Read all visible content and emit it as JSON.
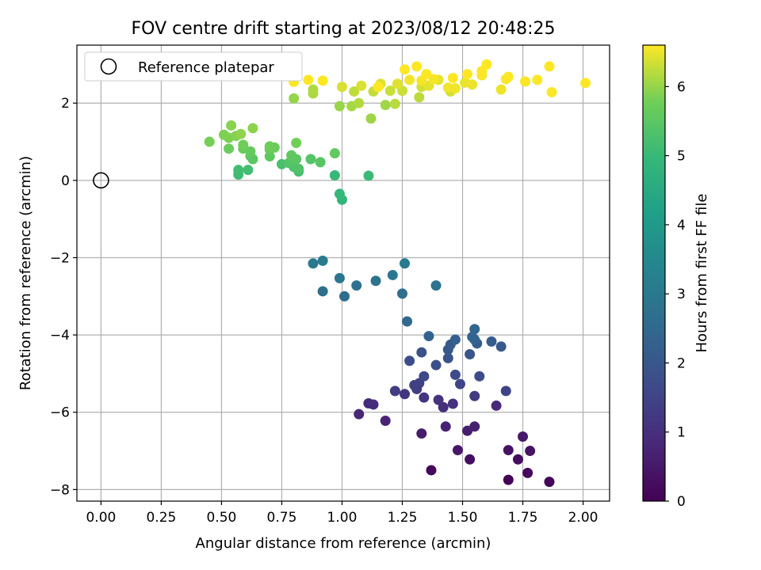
{
  "chart_data": {
    "type": "scatter",
    "title": "FOV centre drift starting at 2023/08/12 20:48:25",
    "xlabel": "Angular distance from reference (arcmin)",
    "ylabel": "Rotation from reference (arcmin)",
    "xlim": [
      -0.1,
      2.11
    ],
    "ylim": [
      -8.3,
      3.5
    ],
    "xticks": [
      "0.00",
      "0.25",
      "0.50",
      "0.75",
      "1.00",
      "1.25",
      "1.50",
      "1.75",
      "2.00"
    ],
    "yticks": [
      "−8",
      "−6",
      "−4",
      "−2",
      "0",
      "2"
    ],
    "grid": true,
    "legend": {
      "position": "top-left",
      "entries": [
        "Reference platepar"
      ]
    },
    "reference_point": {
      "x": 0.0,
      "y": 0.0
    },
    "colorbar": {
      "label": "Hours from first FF file",
      "range": [
        0,
        6.6
      ],
      "ticks": [
        "0",
        "1",
        "2",
        "3",
        "4",
        "5",
        "6"
      ],
      "colormap": "viridis"
    },
    "points": [
      [
        1.69,
        -7.75,
        0.05
      ],
      [
        1.86,
        -7.8,
        0.1
      ],
      [
        1.37,
        -7.5,
        0.15
      ],
      [
        1.77,
        -7.57,
        0.2
      ],
      [
        1.73,
        -7.22,
        0.25
      ],
      [
        1.53,
        -7.22,
        0.3
      ],
      [
        1.69,
        -6.98,
        0.35
      ],
      [
        1.78,
        -7.0,
        0.4
      ],
      [
        1.48,
        -6.98,
        0.45
      ],
      [
        1.75,
        -6.63,
        0.5
      ],
      [
        1.33,
        -6.55,
        0.55
      ],
      [
        1.52,
        -6.48,
        0.6
      ],
      [
        1.55,
        -6.37,
        0.65
      ],
      [
        1.43,
        -6.37,
        0.7
      ],
      [
        1.18,
        -6.22,
        0.75
      ],
      [
        1.07,
        -6.05,
        0.8
      ],
      [
        1.64,
        -5.83,
        0.85
      ],
      [
        1.11,
        -5.77,
        0.9
      ],
      [
        1.13,
        -5.8,
        0.95
      ],
      [
        1.42,
        -5.87,
        1.0
      ],
      [
        1.46,
        -5.78,
        1.05
      ],
      [
        1.4,
        -5.68,
        1.1
      ],
      [
        1.34,
        -5.62,
        1.15
      ],
      [
        1.26,
        -5.53,
        1.2
      ],
      [
        1.55,
        -5.58,
        1.25
      ],
      [
        1.22,
        -5.45,
        1.3
      ],
      [
        1.31,
        -5.4,
        1.35
      ],
      [
        1.3,
        -5.3,
        1.4
      ],
      [
        1.32,
        -5.25,
        1.45
      ],
      [
        1.68,
        -5.45,
        1.5
      ],
      [
        1.49,
        -5.27,
        1.55
      ],
      [
        1.34,
        -5.07,
        1.6
      ],
      [
        1.47,
        -5.03,
        1.65
      ],
      [
        1.57,
        -5.07,
        1.7
      ],
      [
        1.28,
        -4.67,
        1.75
      ],
      [
        1.39,
        -4.78,
        1.8
      ],
      [
        1.33,
        -4.45,
        1.85
      ],
      [
        1.44,
        -4.6,
        1.9
      ],
      [
        1.53,
        -4.5,
        1.95
      ],
      [
        1.44,
        -4.38,
        2.0
      ],
      [
        1.66,
        -4.3,
        2.05
      ],
      [
        1.45,
        -4.25,
        2.1
      ],
      [
        1.56,
        -4.22,
        2.15
      ],
      [
        1.62,
        -4.17,
        2.2
      ],
      [
        1.47,
        -4.12,
        2.25
      ],
      [
        1.55,
        -4.12,
        2.3
      ],
      [
        1.36,
        -4.03,
        2.35
      ],
      [
        1.54,
        -4.05,
        2.4
      ],
      [
        1.55,
        -3.85,
        2.45
      ],
      [
        1.27,
        -3.65,
        2.55
      ],
      [
        1.01,
        -3.0,
        2.6
      ],
      [
        1.25,
        -2.93,
        2.65
      ],
      [
        0.92,
        -2.87,
        2.7
      ],
      [
        1.06,
        -2.72,
        2.75
      ],
      [
        1.39,
        -2.72,
        2.8
      ],
      [
        1.14,
        -2.6,
        2.85
      ],
      [
        0.99,
        -2.53,
        2.9
      ],
      [
        1.21,
        -2.45,
        2.95
      ],
      [
        0.88,
        -2.15,
        3.0
      ],
      [
        1.26,
        -2.15,
        3.05
      ],
      [
        0.92,
        -2.08,
        3.1
      ],
      [
        1.0,
        -0.5,
        4.9
      ],
      [
        0.99,
        -0.35,
        4.95
      ],
      [
        0.97,
        0.13,
        5.0
      ],
      [
        1.11,
        0.12,
        5.05
      ],
      [
        0.57,
        0.15,
        5.1
      ],
      [
        0.57,
        0.27,
        5.12
      ],
      [
        0.61,
        0.27,
        5.15
      ],
      [
        0.82,
        0.23,
        5.2
      ],
      [
        0.75,
        0.42,
        5.25
      ],
      [
        0.8,
        0.35,
        5.3
      ],
      [
        0.82,
        0.3,
        5.35
      ],
      [
        0.78,
        0.45,
        5.4
      ],
      [
        0.87,
        0.55,
        5.42
      ],
      [
        0.91,
        0.47,
        5.45
      ],
      [
        0.63,
        0.55,
        5.48
      ],
      [
        0.81,
        0.55,
        5.5
      ],
      [
        0.62,
        0.63,
        5.52
      ],
      [
        0.7,
        0.62,
        5.55
      ],
      [
        0.79,
        0.65,
        5.57
      ],
      [
        0.97,
        0.7,
        5.6
      ],
      [
        0.62,
        0.75,
        5.62
      ],
      [
        0.7,
        0.8,
        5.65
      ],
      [
        0.59,
        0.82,
        5.67
      ],
      [
        0.53,
        0.82,
        5.7
      ],
      [
        0.72,
        0.85,
        5.72
      ],
      [
        0.7,
        0.88,
        5.75
      ],
      [
        0.59,
        0.92,
        5.77
      ],
      [
        0.81,
        0.97,
        5.8
      ],
      [
        0.45,
        1.0,
        5.82
      ],
      [
        0.53,
        1.1,
        5.85
      ],
      [
        0.51,
        1.18,
        5.87
      ],
      [
        0.56,
        1.15,
        5.9
      ],
      [
        0.54,
        1.42,
        5.92
      ],
      [
        0.63,
        1.35,
        5.95
      ],
      [
        0.58,
        1.2,
        5.97
      ],
      [
        0.8,
        2.12,
        6.0
      ],
      [
        0.99,
        1.92,
        6.02
      ],
      [
        1.12,
        1.6,
        6.05
      ],
      [
        1.18,
        1.95,
        6.07
      ],
      [
        1.04,
        1.92,
        6.1
      ],
      [
        0.88,
        2.25,
        6.12
      ],
      [
        0.88,
        2.35,
        6.15
      ],
      [
        1.07,
        2.0,
        6.17
      ],
      [
        1.22,
        1.98,
        6.2
      ],
      [
        1.32,
        2.15,
        6.22
      ],
      [
        1.05,
        2.3,
        6.25
      ],
      [
        1.13,
        2.3,
        6.27
      ],
      [
        1.2,
        2.32,
        6.3
      ],
      [
        1.25,
        2.32,
        6.32
      ],
      [
        1.33,
        2.42,
        6.34
      ],
      [
        1.45,
        2.3,
        6.36
      ],
      [
        1.0,
        2.42,
        6.38
      ],
      [
        1.08,
        2.45,
        6.4
      ],
      [
        1.16,
        2.5,
        6.42
      ],
      [
        1.23,
        2.5,
        6.44
      ],
      [
        1.36,
        2.45,
        6.45
      ],
      [
        1.4,
        2.6,
        6.47
      ],
      [
        1.51,
        2.53,
        6.48
      ],
      [
        1.54,
        2.48,
        6.5
      ],
      [
        1.66,
        2.35,
        6.51
      ],
      [
        1.44,
        2.4,
        6.52
      ],
      [
        1.47,
        2.38,
        6.53
      ],
      [
        1.28,
        2.6,
        6.54
      ],
      [
        1.33,
        2.58,
        6.55
      ],
      [
        1.38,
        2.62,
        6.56
      ],
      [
        1.58,
        2.72,
        6.57
      ],
      [
        1.68,
        2.62,
        6.58
      ],
      [
        1.76,
        2.56,
        6.58
      ],
      [
        1.81,
        2.6,
        6.59
      ],
      [
        1.87,
        2.28,
        6.59
      ],
      [
        2.01,
        2.52,
        6.6
      ],
      [
        1.26,
        2.87,
        6.6
      ],
      [
        1.31,
        2.95,
        6.6
      ],
      [
        1.6,
        3.0,
        6.6
      ],
      [
        1.86,
        2.95,
        6.6
      ],
      [
        0.86,
        2.6,
        6.6
      ],
      [
        0.92,
        2.58,
        6.6
      ],
      [
        0.8,
        2.55,
        6.6
      ],
      [
        1.15,
        2.42,
        6.6
      ],
      [
        1.52,
        2.75,
        6.6
      ],
      [
        1.46,
        2.65,
        6.6
      ],
      [
        1.58,
        2.83,
        6.6
      ],
      [
        1.69,
        2.68,
        6.6
      ],
      [
        1.35,
        2.75,
        6.6
      ]
    ]
  }
}
